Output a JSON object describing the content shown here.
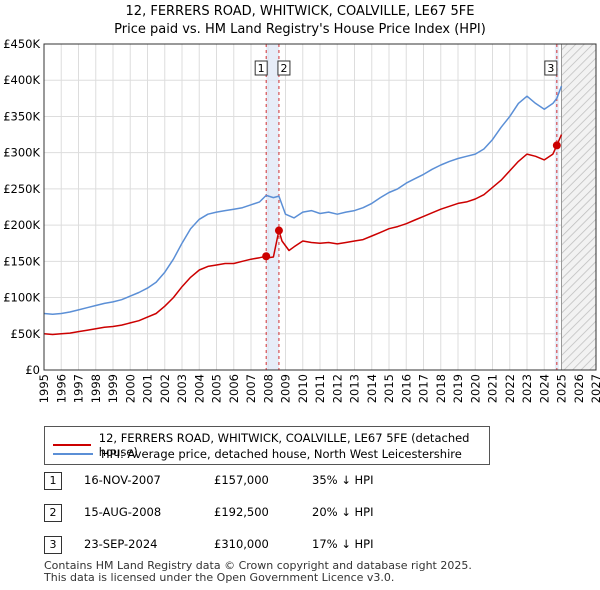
{
  "title_line1": "12, FERRERS ROAD, WHITWICK, COALVILLE, LE67 5FE",
  "title_line2": "Price paid vs. HM Land Registry's House Price Index (HPI)",
  "colors": {
    "property": "#cc0000",
    "hpi": "#5b8fd6",
    "axis": "#333333",
    "grid": "#dddddd",
    "marker_band": "#dde5f5"
  },
  "chart_data": {
    "type": "line",
    "title": "Price paid vs. HM Land Registry's House Price Index (HPI)",
    "xlim": [
      1995,
      2027
    ],
    "ylim": [
      0,
      450000
    ],
    "y_ticks": [
      {
        "value": 0,
        "label": "£0"
      },
      {
        "value": 50000,
        "label": "£50K"
      },
      {
        "value": 100000,
        "label": "£100K"
      },
      {
        "value": 150000,
        "label": "£150K"
      },
      {
        "value": 200000,
        "label": "£200K"
      },
      {
        "value": 250000,
        "label": "£250K"
      },
      {
        "value": 300000,
        "label": "£300K"
      },
      {
        "value": 350000,
        "label": "£350K"
      },
      {
        "value": 400000,
        "label": "£400K"
      },
      {
        "value": 450000,
        "label": "£450K"
      }
    ],
    "x_ticks": [
      "1995",
      "1996",
      "1997",
      "1998",
      "1999",
      "2000",
      "2001",
      "2002",
      "2003",
      "2004",
      "2005",
      "2006",
      "2007",
      "2008",
      "2009",
      "2010",
      "2011",
      "2012",
      "2013",
      "2014",
      "2015",
      "2016",
      "2017",
      "2018",
      "2019",
      "2020",
      "2021",
      "2022",
      "2023",
      "2024",
      "2025",
      "2026",
      "2027"
    ],
    "forecast_start": 2025.0,
    "series": [
      {
        "name": "12, FERRERS ROAD, WHITWICK, COALVILLE, LE67 5FE (detached house)",
        "color": "#cc0000",
        "points": [
          [
            1995.0,
            50000
          ],
          [
            1995.5,
            49000
          ],
          [
            1996.0,
            50000
          ],
          [
            1996.5,
            51000
          ],
          [
            1997.0,
            53000
          ],
          [
            1997.5,
            55000
          ],
          [
            1998.0,
            57000
          ],
          [
            1998.5,
            59000
          ],
          [
            1999.0,
            60000
          ],
          [
            1999.5,
            62000
          ],
          [
            2000.0,
            65000
          ],
          [
            2000.5,
            68000
          ],
          [
            2001.0,
            73000
          ],
          [
            2001.5,
            78000
          ],
          [
            2002.0,
            88000
          ],
          [
            2002.5,
            100000
          ],
          [
            2003.0,
            115000
          ],
          [
            2003.5,
            128000
          ],
          [
            2004.0,
            138000
          ],
          [
            2004.5,
            143000
          ],
          [
            2005.0,
            145000
          ],
          [
            2005.5,
            147000
          ],
          [
            2006.0,
            147000
          ],
          [
            2006.5,
            150000
          ],
          [
            2007.0,
            153000
          ],
          [
            2007.5,
            155000
          ],
          [
            2007.88,
            157000
          ],
          [
            2008.0,
            155000
          ],
          [
            2008.3,
            156000
          ],
          [
            2008.62,
            192500
          ],
          [
            2008.8,
            178000
          ],
          [
            2009.2,
            165000
          ],
          [
            2009.5,
            170000
          ],
          [
            2010.0,
            178000
          ],
          [
            2010.5,
            176000
          ],
          [
            2011.0,
            175000
          ],
          [
            2011.5,
            176000
          ],
          [
            2012.0,
            174000
          ],
          [
            2012.5,
            176000
          ],
          [
            2013.0,
            178000
          ],
          [
            2013.5,
            180000
          ],
          [
            2014.0,
            185000
          ],
          [
            2014.5,
            190000
          ],
          [
            2015.0,
            195000
          ],
          [
            2015.5,
            198000
          ],
          [
            2016.0,
            202000
          ],
          [
            2016.5,
            207000
          ],
          [
            2017.0,
            212000
          ],
          [
            2017.5,
            217000
          ],
          [
            2018.0,
            222000
          ],
          [
            2018.5,
            226000
          ],
          [
            2019.0,
            230000
          ],
          [
            2019.5,
            232000
          ],
          [
            2020.0,
            236000
          ],
          [
            2020.5,
            242000
          ],
          [
            2021.0,
            252000
          ],
          [
            2021.5,
            262000
          ],
          [
            2022.0,
            275000
          ],
          [
            2022.5,
            288000
          ],
          [
            2023.0,
            298000
          ],
          [
            2023.5,
            295000
          ],
          [
            2024.0,
            290000
          ],
          [
            2024.5,
            298000
          ],
          [
            2024.73,
            310000
          ],
          [
            2025.0,
            325000
          ]
        ]
      },
      {
        "name": "HPI: Average price, detached house, North West Leicestershire",
        "color": "#5b8fd6",
        "points": [
          [
            1995.0,
            78000
          ],
          [
            1995.5,
            77000
          ],
          [
            1996.0,
            78000
          ],
          [
            1996.5,
            80000
          ],
          [
            1997.0,
            83000
          ],
          [
            1997.5,
            86000
          ],
          [
            1998.0,
            89000
          ],
          [
            1998.5,
            92000
          ],
          [
            1999.0,
            94000
          ],
          [
            1999.5,
            97000
          ],
          [
            2000.0,
            102000
          ],
          [
            2000.5,
            107000
          ],
          [
            2001.0,
            113000
          ],
          [
            2001.5,
            121000
          ],
          [
            2002.0,
            135000
          ],
          [
            2002.5,
            153000
          ],
          [
            2003.0,
            175000
          ],
          [
            2003.5,
            195000
          ],
          [
            2004.0,
            208000
          ],
          [
            2004.5,
            215000
          ],
          [
            2005.0,
            218000
          ],
          [
            2005.5,
            220000
          ],
          [
            2006.0,
            222000
          ],
          [
            2006.5,
            224000
          ],
          [
            2007.0,
            228000
          ],
          [
            2007.5,
            232000
          ],
          [
            2007.88,
            241000
          ],
          [
            2008.3,
            238000
          ],
          [
            2008.62,
            240000
          ],
          [
            2009.0,
            215000
          ],
          [
            2009.5,
            210000
          ],
          [
            2010.0,
            218000
          ],
          [
            2010.5,
            220000
          ],
          [
            2011.0,
            216000
          ],
          [
            2011.5,
            218000
          ],
          [
            2012.0,
            215000
          ],
          [
            2012.5,
            218000
          ],
          [
            2013.0,
            220000
          ],
          [
            2013.5,
            224000
          ],
          [
            2014.0,
            230000
          ],
          [
            2014.5,
            238000
          ],
          [
            2015.0,
            245000
          ],
          [
            2015.5,
            250000
          ],
          [
            2016.0,
            258000
          ],
          [
            2016.5,
            264000
          ],
          [
            2017.0,
            270000
          ],
          [
            2017.5,
            277000
          ],
          [
            2018.0,
            283000
          ],
          [
            2018.5,
            288000
          ],
          [
            2019.0,
            292000
          ],
          [
            2019.5,
            295000
          ],
          [
            2020.0,
            298000
          ],
          [
            2020.5,
            305000
          ],
          [
            2021.0,
            318000
          ],
          [
            2021.5,
            335000
          ],
          [
            2022.0,
            350000
          ],
          [
            2022.5,
            368000
          ],
          [
            2023.0,
            378000
          ],
          [
            2023.5,
            368000
          ],
          [
            2024.0,
            360000
          ],
          [
            2024.5,
            368000
          ],
          [
            2024.73,
            375000
          ],
          [
            2025.0,
            392000
          ]
        ]
      }
    ],
    "sales": [
      {
        "num": "1",
        "x": 2007.88,
        "y": 157000
      },
      {
        "num": "2",
        "x": 2008.62,
        "y": 192500
      },
      {
        "num": "3",
        "x": 2024.73,
        "y": 310000
      }
    ]
  },
  "legend": {
    "property": "12, FERRERS ROAD, WHITWICK, COALVILLE, LE67 5FE (detached house)",
    "hpi": "HPI: Average price, detached house, North West Leicestershire"
  },
  "sales_table": [
    {
      "num": "1",
      "date": "16-NOV-2007",
      "price": "£157,000",
      "hpi": "35% ↓ HPI"
    },
    {
      "num": "2",
      "date": "15-AUG-2008",
      "price": "£192,500",
      "hpi": "20% ↓ HPI"
    },
    {
      "num": "3",
      "date": "23-SEP-2024",
      "price": "£310,000",
      "hpi": "17% ↓ HPI"
    }
  ],
  "footer_line1": "Contains HM Land Registry data © Crown copyright and database right 2025.",
  "footer_line2": "This data is licensed under the Open Government Licence v3.0."
}
